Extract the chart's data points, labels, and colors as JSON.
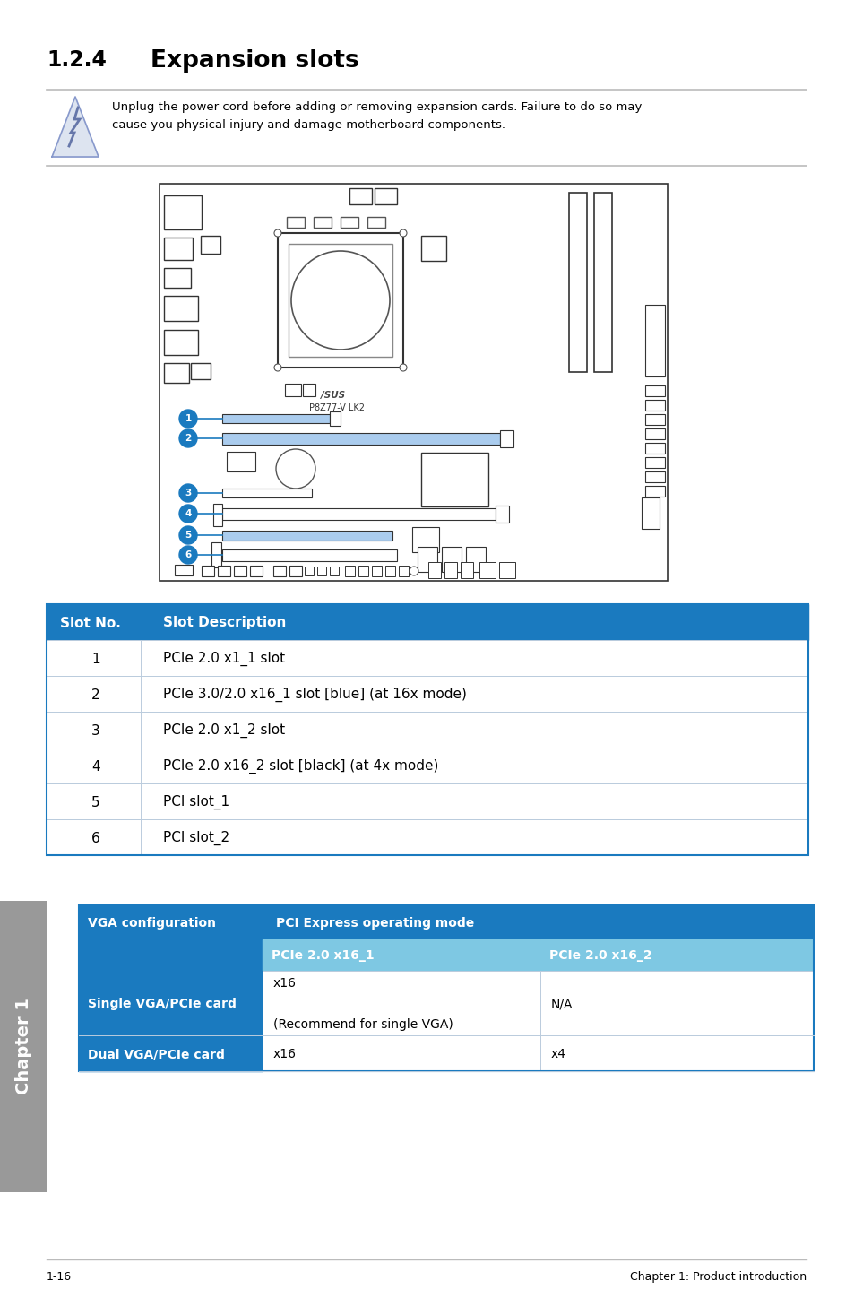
{
  "title_number": "1.2.4",
  "title_text": "Expansion slots",
  "warning_text": "Unplug the power cord before adding or removing expansion cards. Failure to do so may\ncause you physical injury and damage motherboard components.",
  "blue_header_color": "#1a7abf",
  "light_blue_color": "#7ec8e3",
  "bg_color": "#ffffff",
  "table1_header": [
    "Slot No.",
    "Slot Description"
  ],
  "table1_rows": [
    [
      "1",
      "PCIe 2.0 x1_1 slot"
    ],
    [
      "2",
      "PCIe 3.0/2.0 x16_1 slot [blue] (at 16x mode)"
    ],
    [
      "3",
      "PCIe 2.0 x1_2 slot"
    ],
    [
      "4",
      "PCIe 2.0 x16_2 slot [black] (at 4x mode)"
    ],
    [
      "5",
      "PCI slot_1"
    ],
    [
      "6",
      "PCI slot_2"
    ]
  ],
  "table2_header_main": "PCI Express operating mode",
  "table2_col2_header": "PCIe 2.0 x16_1",
  "table2_col3_header": "PCIe 2.0 x16_2",
  "table2_rows": [
    [
      "Single VGA/PCIe card",
      "x16\n\n(Recommend for single VGA)",
      "N/A"
    ],
    [
      "Dual VGA/PCIe card",
      "x16",
      "x4"
    ]
  ],
  "chapter_label": "Chapter 1",
  "footer_left": "1-16",
  "footer_right": "Chapter 1: Product introduction"
}
